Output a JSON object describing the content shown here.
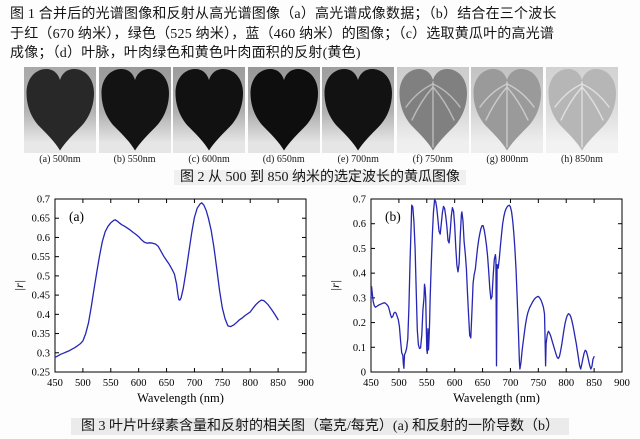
{
  "fig1": {
    "line1": "图 1 合并后的光谱图像和反射从高光谱图像（a）高光谱成像数据；（b）结合在三个波长",
    "line2": "于红（670 纳米），绿色（525 纳米），蓝（460 纳米）的图像；（c）选取黄瓜叶的高光谱",
    "line3": "成像；（d）叶脉，叶肉绿色和黄色叶肉面积的反射(黄色)"
  },
  "fig2": {
    "caption": "图 2 从 500 到 850 纳米的选定波长的黄瓜图像"
  },
  "fig3": {
    "caption": "图 3 叶片叶绿素含量和反射的相关图（毫克/每克）(a) 和反射的一阶导数（b）"
  },
  "leaf_strip": {
    "items": [
      {
        "label": "(a) 500nm",
        "leaf": "#282828",
        "veins": false,
        "vein_color": "",
        "bg_top": "#a8a8a8",
        "bg_mid": "#b4b4b4",
        "bg_bot": "#e8e8e8"
      },
      {
        "label": "(b) 550nm",
        "leaf": "#131313",
        "veins": false,
        "vein_color": "",
        "bg_top": "#9a9a9a",
        "bg_mid": "#aeaeae",
        "bg_bot": "#e6e6e6"
      },
      {
        "label": "(c) 600nm",
        "leaf": "#111111",
        "veins": false,
        "vein_color": "",
        "bg_top": "#9c9c9c",
        "bg_mid": "#b0b0b0",
        "bg_bot": "#e6e6e6"
      },
      {
        "label": "(d) 650nm",
        "leaf": "#0e0e0e",
        "veins": false,
        "vein_color": "",
        "bg_top": "#989898",
        "bg_mid": "#acacac",
        "bg_bot": "#e4e4e4"
      },
      {
        "label": "(e) 700nm",
        "leaf": "#121212",
        "veins": false,
        "vein_color": "",
        "bg_top": "#9e9e9e",
        "bg_mid": "#b2b2b2",
        "bg_bot": "#e6e6e6"
      },
      {
        "label": "(f) 750nm",
        "leaf": "#808080",
        "veins": true,
        "vein_color": "#c6c6c6",
        "bg_top": "#cccccc",
        "bg_mid": "#d8d8d8",
        "bg_bot": "#efefef"
      },
      {
        "label": "(g) 800nm",
        "leaf": "#9a9a9a",
        "veins": true,
        "vein_color": "#d4d4d4",
        "bg_top": "#c2c2c2",
        "bg_mid": "#d4d4d4",
        "bg_bot": "#eeeeee"
      },
      {
        "label": "(h) 850nm",
        "leaf": "#b6b6b6",
        "veins": true,
        "vein_color": "#e6e6e6",
        "bg_top": "#d2d2d2",
        "bg_mid": "#dedede",
        "bg_bot": "#f2f2f2"
      }
    ]
  },
  "chart_data": [
    {
      "type": "line",
      "panel_label": "(a)",
      "title": "",
      "xlabel": "Wavelength (nm)",
      "ylabel": "|r|",
      "xlim": [
        450,
        900
      ],
      "ylim": [
        0.25,
        0.7
      ],
      "xticks": [
        450,
        500,
        550,
        600,
        650,
        700,
        750,
        800,
        850,
        900
      ],
      "xtick_labels": [
        "450",
        "500",
        "550",
        "600",
        "650",
        "700",
        "750",
        "800",
        "850",
        "900"
      ],
      "yticks": [
        0.25,
        0.3,
        0.35,
        0.4,
        0.45,
        0.5,
        0.55,
        0.6,
        0.65,
        0.7
      ],
      "ytick_labels": [
        "0.25",
        "0.3",
        "0.35",
        "0.4",
        "0.45",
        "0.5",
        "0.55",
        "0.6",
        "0.65",
        "0.7"
      ],
      "grid": false,
      "legend": null,
      "line_color": "#2626b4",
      "points": [
        [
          450,
          0.288
        ],
        [
          455,
          0.292
        ],
        [
          460,
          0.296
        ],
        [
          465,
          0.299
        ],
        [
          470,
          0.302
        ],
        [
          475,
          0.305
        ],
        [
          480,
          0.309
        ],
        [
          485,
          0.313
        ],
        [
          490,
          0.318
        ],
        [
          495,
          0.323
        ],
        [
          500,
          0.331
        ],
        [
          505,
          0.35
        ],
        [
          510,
          0.378
        ],
        [
          515,
          0.42
        ],
        [
          520,
          0.465
        ],
        [
          525,
          0.51
        ],
        [
          530,
          0.553
        ],
        [
          535,
          0.59
        ],
        [
          540,
          0.615
        ],
        [
          545,
          0.629
        ],
        [
          550,
          0.638
        ],
        [
          555,
          0.644
        ],
        [
          558,
          0.646
        ],
        [
          562,
          0.642
        ],
        [
          566,
          0.637
        ],
        [
          570,
          0.633
        ],
        [
          575,
          0.629
        ],
        [
          580,
          0.624
        ],
        [
          585,
          0.619
        ],
        [
          590,
          0.613
        ],
        [
          595,
          0.608
        ],
        [
          600,
          0.602
        ],
        [
          605,
          0.594
        ],
        [
          610,
          0.588
        ],
        [
          615,
          0.585
        ],
        [
          620,
          0.586
        ],
        [
          625,
          0.585
        ],
        [
          630,
          0.583
        ],
        [
          635,
          0.577
        ],
        [
          640,
          0.564
        ],
        [
          645,
          0.551
        ],
        [
          650,
          0.54
        ],
        [
          655,
          0.53
        ],
        [
          660,
          0.517
        ],
        [
          664,
          0.505
        ],
        [
          668,
          0.478
        ],
        [
          670,
          0.455
        ],
        [
          672,
          0.438
        ],
        [
          674,
          0.437
        ],
        [
          676,
          0.443
        ],
        [
          680,
          0.468
        ],
        [
          685,
          0.513
        ],
        [
          690,
          0.563
        ],
        [
          695,
          0.612
        ],
        [
          700,
          0.652
        ],
        [
          705,
          0.676
        ],
        [
          710,
          0.687
        ],
        [
          713,
          0.69
        ],
        [
          717,
          0.684
        ],
        [
          721,
          0.67
        ],
        [
          725,
          0.65
        ],
        [
          730,
          0.618
        ],
        [
          735,
          0.573
        ],
        [
          740,
          0.518
        ],
        [
          745,
          0.463
        ],
        [
          750,
          0.417
        ],
        [
          755,
          0.388
        ],
        [
          760,
          0.37
        ],
        [
          765,
          0.368
        ],
        [
          770,
          0.372
        ],
        [
          775,
          0.378
        ],
        [
          780,
          0.385
        ],
        [
          785,
          0.39
        ],
        [
          790,
          0.396
        ],
        [
          795,
          0.401
        ],
        [
          800,
          0.406
        ],
        [
          805,
          0.416
        ],
        [
          810,
          0.425
        ],
        [
          815,
          0.432
        ],
        [
          820,
          0.437
        ],
        [
          824,
          0.436
        ],
        [
          828,
          0.431
        ],
        [
          832,
          0.425
        ],
        [
          836,
          0.417
        ],
        [
          840,
          0.409
        ],
        [
          845,
          0.398
        ],
        [
          850,
          0.386
        ]
      ]
    },
    {
      "type": "line",
      "panel_label": "(b)",
      "title": "",
      "xlabel": "Wavelength (nm)",
      "ylabel": "|r|",
      "xlim": [
        450,
        900
      ],
      "ylim": [
        0,
        0.7
      ],
      "xticks": [
        450,
        500,
        550,
        600,
        650,
        700,
        750,
        800,
        850,
        900
      ],
      "xtick_labels": [
        "450",
        "500",
        "550",
        "600",
        "650",
        "700",
        "750",
        "800",
        "850",
        "900"
      ],
      "yticks": [
        0,
        0.1,
        0.2,
        0.3,
        0.4,
        0.5,
        0.6,
        0.7
      ],
      "ytick_labels": [
        "0",
        "0.1",
        "0.2",
        "0.3",
        "0.4",
        "0.5",
        "0.6",
        "0.7"
      ],
      "grid": false,
      "legend": null,
      "line_color": "#2626b4",
      "points": [
        [
          450,
          0.3
        ],
        [
          451,
          0.345
        ],
        [
          452,
          0.325
        ],
        [
          454,
          0.285
        ],
        [
          456,
          0.268
        ],
        [
          458,
          0.262
        ],
        [
          460,
          0.265
        ],
        [
          463,
          0.27
        ],
        [
          466,
          0.273
        ],
        [
          469,
          0.276
        ],
        [
          472,
          0.279
        ],
        [
          475,
          0.28
        ],
        [
          478,
          0.274
        ],
        [
          481,
          0.265
        ],
        [
          483,
          0.25
        ],
        [
          485,
          0.232
        ],
        [
          487,
          0.22
        ],
        [
          489,
          0.225
        ],
        [
          491,
          0.238
        ],
        [
          493,
          0.242
        ],
        [
          495,
          0.238
        ],
        [
          497,
          0.225
        ],
        [
          499,
          0.212
        ],
        [
          501,
          0.185
        ],
        [
          503,
          0.125
        ],
        [
          505,
          0.078
        ],
        [
          507,
          0.068
        ],
        [
          508,
          0.03
        ],
        [
          509,
          0.015
        ],
        [
          510,
          0.07
        ],
        [
          512,
          0.08
        ],
        [
          514,
          0.098
        ],
        [
          516,
          0.135
        ],
        [
          518,
          0.26
        ],
        [
          520,
          0.44
        ],
        [
          522,
          0.6
        ],
        [
          523,
          0.675
        ],
        [
          525,
          0.668
        ],
        [
          527,
          0.61
        ],
        [
          529,
          0.5
        ],
        [
          531,
          0.33
        ],
        [
          533,
          0.17
        ],
        [
          535,
          0.11
        ],
        [
          537,
          0.095
        ],
        [
          539,
          0.098
        ],
        [
          541,
          0.15
        ],
        [
          543,
          0.25
        ],
        [
          545,
          0.3
        ],
        [
          546,
          0.355
        ],
        [
          547,
          0.34
        ],
        [
          548,
          0.3
        ],
        [
          549,
          0.2
        ],
        [
          550,
          0.09
        ],
        [
          551,
          0.075
        ],
        [
          552,
          0.175
        ],
        [
          553,
          0.09
        ],
        [
          554,
          0.13
        ],
        [
          555,
          0.2
        ],
        [
          556,
          0.29
        ],
        [
          558,
          0.43
        ],
        [
          560,
          0.56
        ],
        [
          562,
          0.65
        ],
        [
          564,
          0.697
        ],
        [
          566,
          0.69
        ],
        [
          568,
          0.662
        ],
        [
          570,
          0.618
        ],
        [
          572,
          0.57
        ],
        [
          574,
          0.558
        ],
        [
          576,
          0.6
        ],
        [
          578,
          0.645
        ],
        [
          580,
          0.67
        ],
        [
          582,
          0.662
        ],
        [
          584,
          0.632
        ],
        [
          586,
          0.588
        ],
        [
          588,
          0.532
        ],
        [
          590,
          0.522
        ],
        [
          592,
          0.568
        ],
        [
          594,
          0.63
        ],
        [
          596,
          0.665
        ],
        [
          598,
          0.65
        ],
        [
          600,
          0.592
        ],
        [
          602,
          0.502
        ],
        [
          604,
          0.432
        ],
        [
          606,
          0.405
        ],
        [
          608,
          0.438
        ],
        [
          610,
          0.548
        ],
        [
          612,
          0.638
        ],
        [
          613,
          0.648
        ],
        [
          615,
          0.61
        ],
        [
          617,
          0.528
        ],
        [
          619,
          0.478
        ],
        [
          621,
          0.418
        ],
        [
          623,
          0.318
        ],
        [
          625,
          0.23
        ],
        [
          627,
          0.148
        ],
        [
          629,
          0.138
        ],
        [
          631,
          0.25
        ],
        [
          633,
          0.36
        ],
        [
          635,
          0.395
        ],
        [
          637,
          0.415
        ],
        [
          639,
          0.458
        ],
        [
          641,
          0.5
        ],
        [
          643,
          0.535
        ],
        [
          645,
          0.56
        ],
        [
          647,
          0.58
        ],
        [
          649,
          0.592
        ],
        [
          651,
          0.592
        ],
        [
          653,
          0.575
        ],
        [
          655,
          0.548
        ],
        [
          657,
          0.512
        ],
        [
          659,
          0.468
        ],
        [
          661,
          0.408
        ],
        [
          663,
          0.338
        ],
        [
          665,
          0.295
        ],
        [
          667,
          0.305
        ],
        [
          669,
          0.39
        ],
        [
          671,
          0.455
        ],
        [
          673,
          0.475
        ],
        [
          674,
          0.455
        ],
        [
          675,
          0.025
        ],
        [
          676,
          0.435
        ],
        [
          678,
          0.42
        ],
        [
          680,
          0.458
        ],
        [
          682,
          0.51
        ],
        [
          684,
          0.555
        ],
        [
          686,
          0.598
        ],
        [
          688,
          0.628
        ],
        [
          690,
          0.648
        ],
        [
          692,
          0.66
        ],
        [
          694,
          0.668
        ],
        [
          696,
          0.673
        ],
        [
          698,
          0.675
        ],
        [
          700,
          0.668
        ],
        [
          702,
          0.648
        ],
        [
          704,
          0.612
        ],
        [
          706,
          0.562
        ],
        [
          708,
          0.498
        ],
        [
          710,
          0.418
        ],
        [
          712,
          0.308
        ],
        [
          714,
          0.178
        ],
        [
          716,
          0.042
        ],
        [
          717,
          0.012
        ],
        [
          719,
          0.04
        ],
        [
          721,
          0.09
        ],
        [
          723,
          0.125
        ],
        [
          725,
          0.16
        ],
        [
          727,
          0.192
        ],
        [
          729,
          0.218
        ],
        [
          731,
          0.238
        ],
        [
          734,
          0.258
        ],
        [
          737,
          0.272
        ],
        [
          740,
          0.285
        ],
        [
          743,
          0.295
        ],
        [
          746,
          0.302
        ],
        [
          749,
          0.306
        ],
        [
          751,
          0.304
        ],
        [
          753,
          0.298
        ],
        [
          755,
          0.29
        ],
        [
          757,
          0.278
        ],
        [
          759,
          0.262
        ],
        [
          761,
          0.235
        ],
        [
          762,
          0.15
        ],
        [
          763,
          0.025
        ],
        [
          764,
          0.115
        ],
        [
          766,
          0.152
        ],
        [
          768,
          0.165
        ],
        [
          770,
          0.158
        ],
        [
          772,
          0.147
        ],
        [
          774,
          0.132
        ],
        [
          776,
          0.116
        ],
        [
          778,
          0.1
        ],
        [
          780,
          0.085
        ],
        [
          782,
          0.07
        ],
        [
          784,
          0.058
        ],
        [
          786,
          0.055
        ],
        [
          788,
          0.064
        ],
        [
          790,
          0.085
        ],
        [
          792,
          0.112
        ],
        [
          794,
          0.142
        ],
        [
          796,
          0.172
        ],
        [
          798,
          0.197
        ],
        [
          800,
          0.216
        ],
        [
          802,
          0.229
        ],
        [
          804,
          0.236
        ],
        [
          806,
          0.233
        ],
        [
          808,
          0.224
        ],
        [
          810,
          0.209
        ],
        [
          812,
          0.189
        ],
        [
          814,
          0.166
        ],
        [
          816,
          0.141
        ],
        [
          818,
          0.114
        ],
        [
          820,
          0.085
        ],
        [
          822,
          0.055
        ],
        [
          824,
          0.026
        ],
        [
          826,
          0.012
        ],
        [
          828,
          0.032
        ],
        [
          830,
          0.056
        ],
        [
          832,
          0.076
        ],
        [
          834,
          0.088
        ],
        [
          836,
          0.084
        ],
        [
          838,
          0.068
        ],
        [
          840,
          0.048
        ],
        [
          842,
          0.028
        ],
        [
          844,
          0.012
        ],
        [
          846,
          0.022
        ],
        [
          848,
          0.052
        ],
        [
          850,
          0.062
        ]
      ]
    }
  ]
}
